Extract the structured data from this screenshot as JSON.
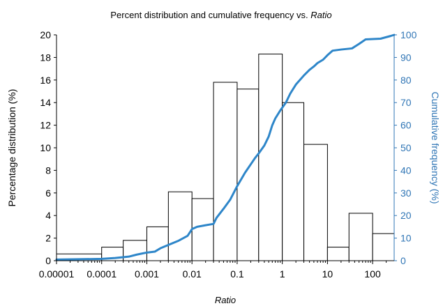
{
  "chart_data": {
    "type": "bar+line",
    "title": {
      "main": "Percent distribution and cumulative frequency vs. ",
      "emphasis": "Ratio"
    },
    "xlabel": "Ratio",
    "ylabel_left": "Percentage distribution (%)",
    "ylabel_right": "Cumulative frequency (%)",
    "x_scale": "log",
    "xlim": [
      1e-05,
      300
    ],
    "ylim_left": [
      0,
      20
    ],
    "ylim_right": [
      0,
      100
    ],
    "x_ticks": [
      {
        "value": 1e-05,
        "label": "0.00001"
      },
      {
        "value": 0.0001,
        "label": "0.0001"
      },
      {
        "value": 0.001,
        "label": "0.001"
      },
      {
        "value": 0.01,
        "label": "0.01"
      },
      {
        "value": 0.1,
        "label": "0.1"
      },
      {
        "value": 1,
        "label": "1"
      },
      {
        "value": 10,
        "label": "10"
      },
      {
        "value": 100,
        "label": "100"
      }
    ],
    "y_ticks_left": [
      "0",
      "2",
      "4",
      "6",
      "8",
      "10",
      "12",
      "14",
      "16",
      "18",
      "20"
    ],
    "y_ticks_right": [
      "0",
      "10",
      "20",
      "30",
      "40",
      "50",
      "60",
      "70",
      "80",
      "90",
      "100"
    ],
    "grid": false,
    "legend": "none",
    "colors": {
      "bars_fill": "#ffffff",
      "bars_edge": "#000000",
      "line": "#2E86C9",
      "right_axis": "#2F75B5"
    },
    "bins": [
      {
        "from": 1e-05,
        "to": 0.0001,
        "value": 0.6
      },
      {
        "from": 0.0001,
        "to": 0.0003,
        "value": 1.2
      },
      {
        "from": 0.0003,
        "to": 0.001,
        "value": 1.8
      },
      {
        "from": 0.001,
        "to": 0.003,
        "value": 3.0
      },
      {
        "from": 0.003,
        "to": 0.01,
        "value": 6.1
      },
      {
        "from": 0.01,
        "to": 0.03,
        "value": 5.5
      },
      {
        "from": 0.03,
        "to": 0.1,
        "value": 15.8
      },
      {
        "from": 0.1,
        "to": 0.3,
        "value": 15.2
      },
      {
        "from": 0.3,
        "to": 1,
        "value": 18.3
      },
      {
        "from": 1,
        "to": 3,
        "value": 14.0
      },
      {
        "from": 3,
        "to": 10,
        "value": 10.3
      },
      {
        "from": 10,
        "to": 30,
        "value": 1.2
      },
      {
        "from": 30,
        "to": 100,
        "value": 4.2
      },
      {
        "from": 100,
        "to": 300,
        "value": 2.4
      }
    ],
    "cumulative": [
      [
        1e-05,
        0.5
      ],
      [
        0.0001,
        0.8
      ],
      [
        0.0002,
        1.2
      ],
      [
        0.0004,
        1.8
      ],
      [
        0.0006,
        2.7
      ],
      [
        0.001,
        3.6
      ],
      [
        0.0015,
        4.0
      ],
      [
        0.002,
        5.5
      ],
      [
        0.003,
        7.0
      ],
      [
        0.005,
        8.8
      ],
      [
        0.008,
        11.0
      ],
      [
        0.01,
        14.0
      ],
      [
        0.013,
        15.0
      ],
      [
        0.02,
        15.7
      ],
      [
        0.03,
        16.3
      ],
      [
        0.035,
        19.0
      ],
      [
        0.05,
        23.0
      ],
      [
        0.07,
        27.0
      ],
      [
        0.1,
        33.0
      ],
      [
        0.15,
        39.0
      ],
      [
        0.25,
        45.5
      ],
      [
        0.3,
        47.5
      ],
      [
        0.4,
        51.0
      ],
      [
        0.5,
        55.0
      ],
      [
        0.6,
        60.0
      ],
      [
        0.7,
        63.0
      ],
      [
        0.9,
        66.5
      ],
      [
        1.2,
        70.0
      ],
      [
        1.5,
        74.0
      ],
      [
        2,
        78.0
      ],
      [
        3,
        82.0
      ],
      [
        4,
        84.5
      ],
      [
        5,
        86.0
      ],
      [
        6,
        87.5
      ],
      [
        8,
        89.0
      ],
      [
        10,
        91.0
      ],
      [
        13,
        93.0
      ],
      [
        20,
        93.5
      ],
      [
        35,
        94.0
      ],
      [
        50,
        96.0
      ],
      [
        70,
        98.0
      ],
      [
        150,
        98.3
      ],
      [
        250,
        99.5
      ],
      [
        300,
        100.0
      ]
    ]
  }
}
